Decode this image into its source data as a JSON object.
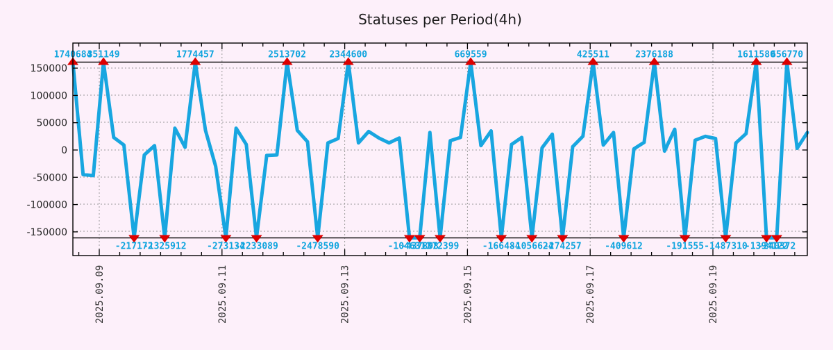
{
  "title": "Statuses per Period(4h)",
  "chart_data": {
    "type": "line",
    "title": "Statuses per Period(4h)",
    "period": "4h",
    "x_axis": {
      "tick_labels": [
        "2025.09.09",
        "2025.09.11",
        "2025.09.13",
        "2025.09.15",
        "2025.09.17",
        "2025.09.19"
      ]
    },
    "y_axis": {
      "tick_values": [
        150000,
        100000,
        50000,
        0,
        -50000,
        -100000,
        -150000
      ],
      "clip_value": 161000
    },
    "values": [
      1740684,
      -45000,
      -47000,
      351149,
      23000,
      9000,
      -217172,
      -9000,
      8000,
      -1325912,
      40000,
      5000,
      1774457,
      36000,
      -30000,
      -273134,
      40000,
      10000,
      -2233089,
      -10000,
      -9000,
      2513702,
      36000,
      15000,
      -2478590,
      13000,
      21000,
      2344600,
      13000,
      34000,
      22000,
      13000,
      22000,
      -1046311,
      -437898,
      32000,
      -372399,
      17000,
      23000,
      669559,
      8000,
      35000,
      -166484,
      10000,
      23000,
      -1056624,
      4000,
      29000,
      -274257,
      6000,
      25000,
      425511,
      9000,
      32000,
      -409612,
      2000,
      14000,
      2376188,
      -2000,
      38000,
      -191555,
      18000,
      25000,
      21000,
      -1487310,
      13000,
      30000,
      1611580,
      -1394122,
      -240372,
      656770,
      3000,
      32000
    ],
    "peak_labels": [
      "1740684",
      "351149",
      "1774457",
      "2513702",
      "2344600",
      "669559",
      "425511",
      "2376188",
      "1611580",
      "656770"
    ],
    "valley_labels": [
      "-217172",
      "-1325912",
      "-273134",
      "-2233089",
      "-2478590",
      "-1046311",
      "-437898",
      "-372399",
      "-166484",
      "-1056624",
      "-274257",
      "-409612",
      "-191555",
      "-1487310",
      "-1394122",
      "-240372"
    ],
    "colors": {
      "line": "#18a6e0",
      "marker": "#dd0000",
      "value_label": "#0ea4de",
      "grid": "#999999",
      "frame": "#000000",
      "background": "#fdf0fa"
    }
  }
}
